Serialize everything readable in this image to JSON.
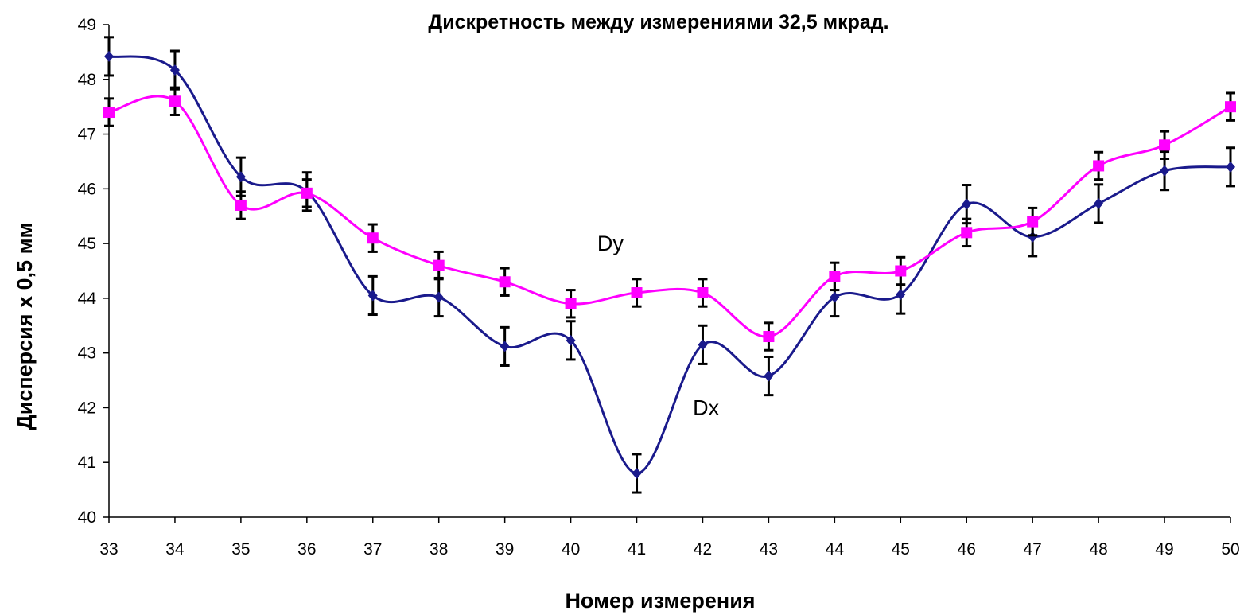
{
  "chart_data": {
    "type": "line",
    "title": "Дискретность между измерениями 32,5 мкрад.",
    "xlabel": "Номер измерения",
    "ylabel": "Дисперсия х 0,5 мм",
    "x": [
      33,
      34,
      35,
      36,
      37,
      38,
      39,
      40,
      41,
      42,
      43,
      44,
      45,
      46,
      47,
      48,
      49,
      50
    ],
    "xlim": [
      33,
      50
    ],
    "ylim": [
      40,
      49
    ],
    "yticks": [
      40,
      41,
      42,
      43,
      44,
      45,
      46,
      47,
      48,
      49
    ],
    "grid": false,
    "legend": "none",
    "smooth": true,
    "series": [
      {
        "name": "Dx",
        "color": "#1a1a8c",
        "marker": "diamond",
        "values": [
          48.42,
          48.17,
          46.22,
          45.95,
          44.05,
          44.02,
          43.12,
          43.23,
          40.8,
          43.15,
          42.58,
          44.02,
          44.07,
          45.72,
          45.12,
          45.73,
          46.33,
          46.4
        ],
        "errors": [
          0.35,
          0.35,
          0.35,
          0.35,
          0.35,
          0.35,
          0.35,
          0.35,
          0.35,
          0.35,
          0.35,
          0.35,
          0.35,
          0.35,
          0.35,
          0.35,
          0.35,
          0.35
        ]
      },
      {
        "name": "Dy",
        "color": "#ff00ff",
        "marker": "square",
        "values": [
          47.4,
          47.6,
          45.7,
          45.92,
          45.1,
          44.6,
          44.3,
          43.9,
          44.1,
          44.1,
          43.3,
          44.4,
          44.5,
          45.2,
          45.4,
          46.42,
          46.8,
          47.5
        ],
        "errors": [
          0.25,
          0.25,
          0.25,
          0.25,
          0.25,
          0.25,
          0.25,
          0.25,
          0.25,
          0.25,
          0.25,
          0.25,
          0.25,
          0.25,
          0.25,
          0.25,
          0.25,
          0.25
        ]
      }
    ],
    "annotations": [
      {
        "text": "Dy",
        "series": "Dy",
        "x": 40.6,
        "y": 45.0
      },
      {
        "text": "Dx",
        "series": "Dx",
        "x": 42.05,
        "y": 42.0
      }
    ]
  }
}
